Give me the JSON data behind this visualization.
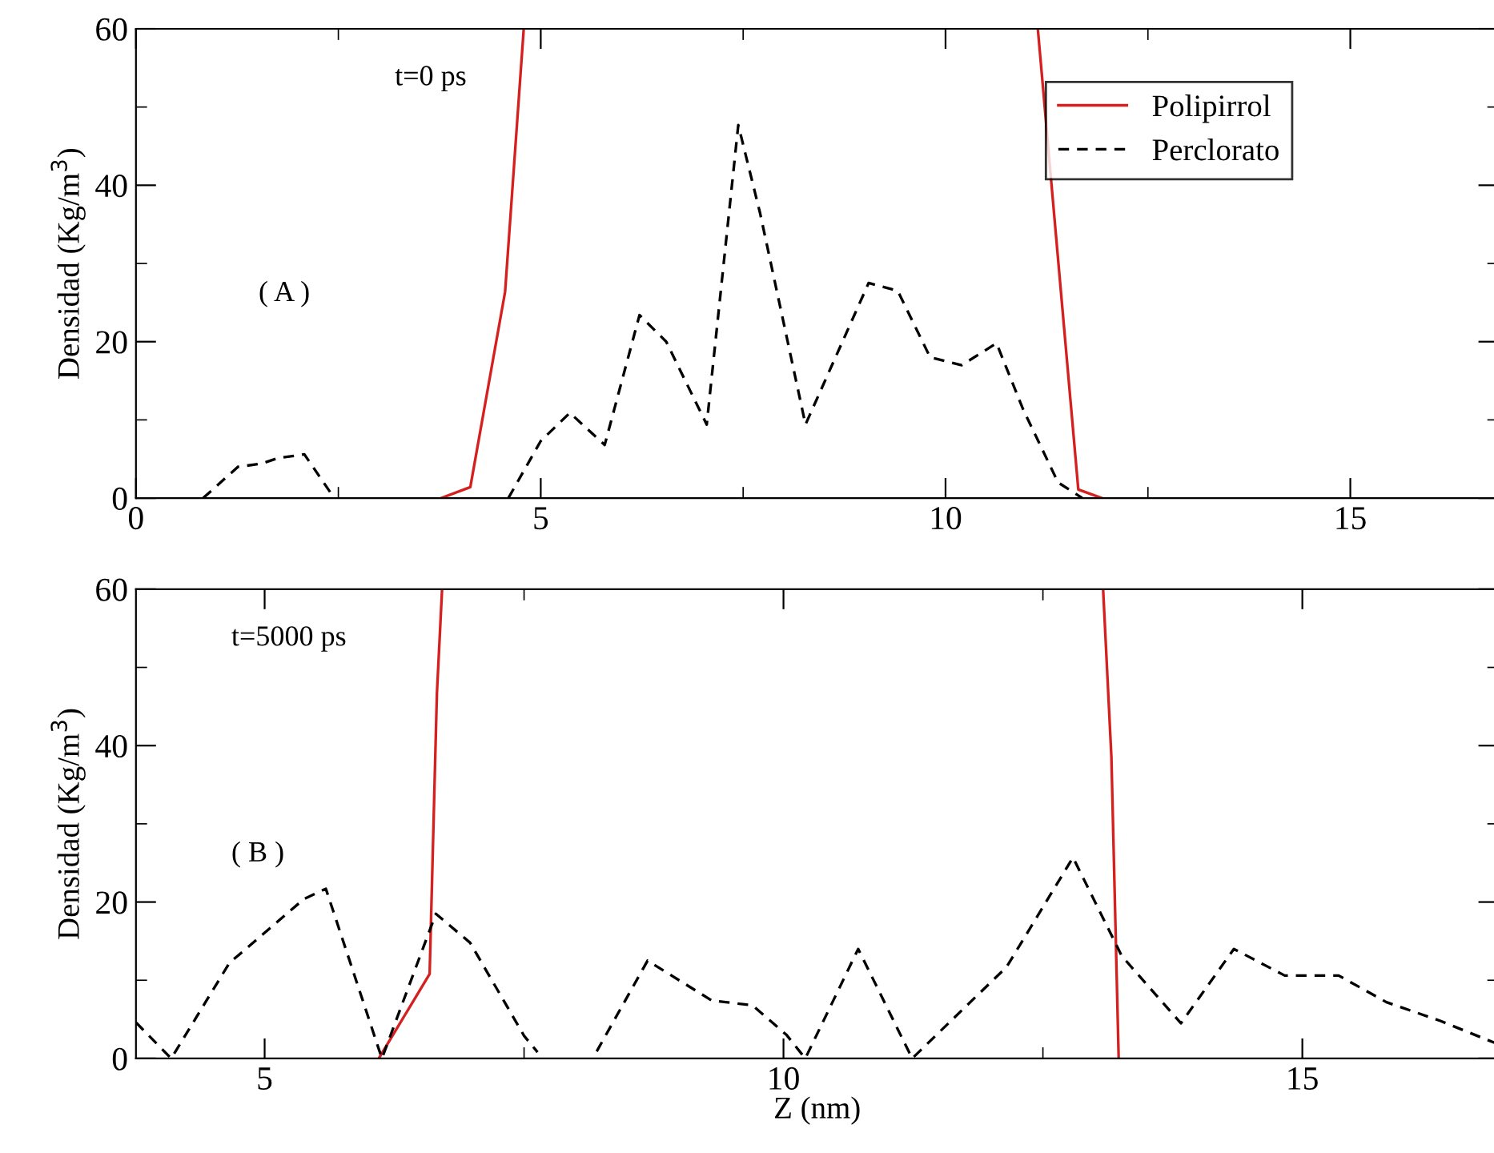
{
  "chart_data": [
    {
      "type": "line",
      "ylabel": "Densidad (Kg/m$^{3}$)",
      "annotations": [
        "t=0 ps",
        "( A )"
      ],
      "xlim": [
        0,
        16.83
      ],
      "xticks": [
        0,
        5,
        10,
        15
      ],
      "ylim": [
        0,
        60
      ],
      "yticks": [
        0,
        20,
        40,
        60
      ],
      "legend": "top right",
      "grid": false,
      "series": [
        {
          "name": "Polipirrol",
          "color": "#d62020",
          "line_style": "solid",
          "x": [
            3.77,
            4.13,
            4.56,
            4.79,
            null,
            11.14,
            11.64,
            11.93
          ],
          "values": [
            0,
            1.4,
            26.4,
            60,
            null,
            60,
            1.1,
            0
          ]
        },
        {
          "name": "Perclorato",
          "color": "#000000",
          "line_style": "dashed",
          "x": [
            0.83,
            1.26,
            1.55,
            1.75,
            2.08,
            2.45,
            null,
            4.6,
            5.0,
            5.36,
            5.79,
            6.22,
            6.55,
            7.05,
            7.44,
            7.71,
            8.27,
            9.05,
            9.41,
            9.81,
            10.2,
            10.63,
            10.96,
            11.39,
            11.69
          ],
          "values": [
            0,
            4.0,
            4.4,
            5.1,
            5.6,
            0,
            null,
            0,
            7.3,
            10.9,
            6.8,
            23.4,
            20,
            9.4,
            47.7,
            36.4,
            9.4,
            27.5,
            26.5,
            18,
            17,
            19.8,
            11.3,
            2,
            0
          ]
        }
      ]
    },
    {
      "type": "line",
      "ylabel": "Densidad (Kg/m$^{3}$)",
      "xlabel": "Z (nm)",
      "annotations": [
        "t=5000 ps",
        "( B )"
      ],
      "xlim": [
        3.76,
        16.89
      ],
      "xticks": [
        5,
        10,
        15
      ],
      "ylim": [
        0,
        60
      ],
      "yticks": [
        0,
        20,
        40,
        60
      ],
      "grid": false,
      "series": [
        {
          "color": "#d62020",
          "line_style": "solid",
          "x": [
            6.1,
            6.59,
            6.66,
            6.71,
            null,
            13.08,
            13.16,
            13.23
          ],
          "values": [
            0,
            10.8,
            46.6,
            60,
            null,
            60,
            38.5,
            0
          ]
        },
        {
          "color": "#000000",
          "line_style": "dashed",
          "x": [
            3.76,
            4.1,
            4.66,
            5.38,
            5.59,
            6.13,
            6.65,
            6.98,
            7.5,
            7.63,
            null,
            8.2,
            8.69,
            9.31,
            9.7,
            10.03,
            10.21,
            10.72,
            11.24,
            12.15,
            12.79,
            13.26,
            13.83,
            14.34,
            14.83,
            15.35,
            15.81,
            16.33,
            16.89
          ],
          "values": [
            4.6,
            0,
            12.2,
            20.4,
            21.7,
            0,
            18.5,
            14.8,
            2.9,
            0.8,
            null,
            0.9,
            12.5,
            7.4,
            6.8,
            3,
            0,
            14,
            0,
            11.7,
            25.7,
            13.1,
            4.5,
            14,
            10.6,
            10.6,
            7.2,
            4.8,
            1.8
          ]
        }
      ]
    }
  ]
}
